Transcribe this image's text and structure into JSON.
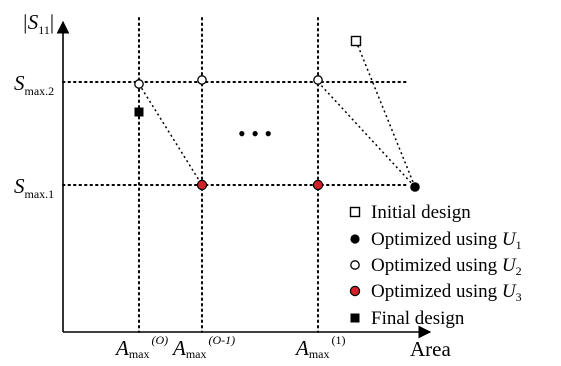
{
  "axes": {
    "y_label": {
      "main": "|S",
      "sub": "11",
      "end": "|"
    },
    "x_label": "Area"
  },
  "s_levels": [
    {
      "main": "S",
      "sub": "max.2"
    },
    {
      "main": "S",
      "sub": "max.1"
    }
  ],
  "a_levels": [
    {
      "main": "A",
      "sub": "max",
      "sup": "(O)"
    },
    {
      "main": "A",
      "sub": "max",
      "sup": "(O-1)"
    },
    {
      "main": "A",
      "sub": "max",
      "sup": "(1)"
    }
  ],
  "ellipsis": "• • •",
  "legend": [
    {
      "symbol": "square-open",
      "text": "Initial design",
      "var": "",
      "var_sub": ""
    },
    {
      "symbol": "circle-filled",
      "text": "Optimized using ",
      "var": "U",
      "var_sub": "1"
    },
    {
      "symbol": "circle-open",
      "text": "Optimized using ",
      "var": "U",
      "var_sub": "2"
    },
    {
      "symbol": "circle-red",
      "text": "Optimized using ",
      "var": "U",
      "var_sub": "3"
    },
    {
      "symbol": "square-filled",
      "text": "Final design",
      "var": "",
      "var_sub": ""
    }
  ],
  "colors": {
    "ink": "#000000",
    "red_fill": "#d0202a",
    "open_fill": "#ffffff"
  }
}
